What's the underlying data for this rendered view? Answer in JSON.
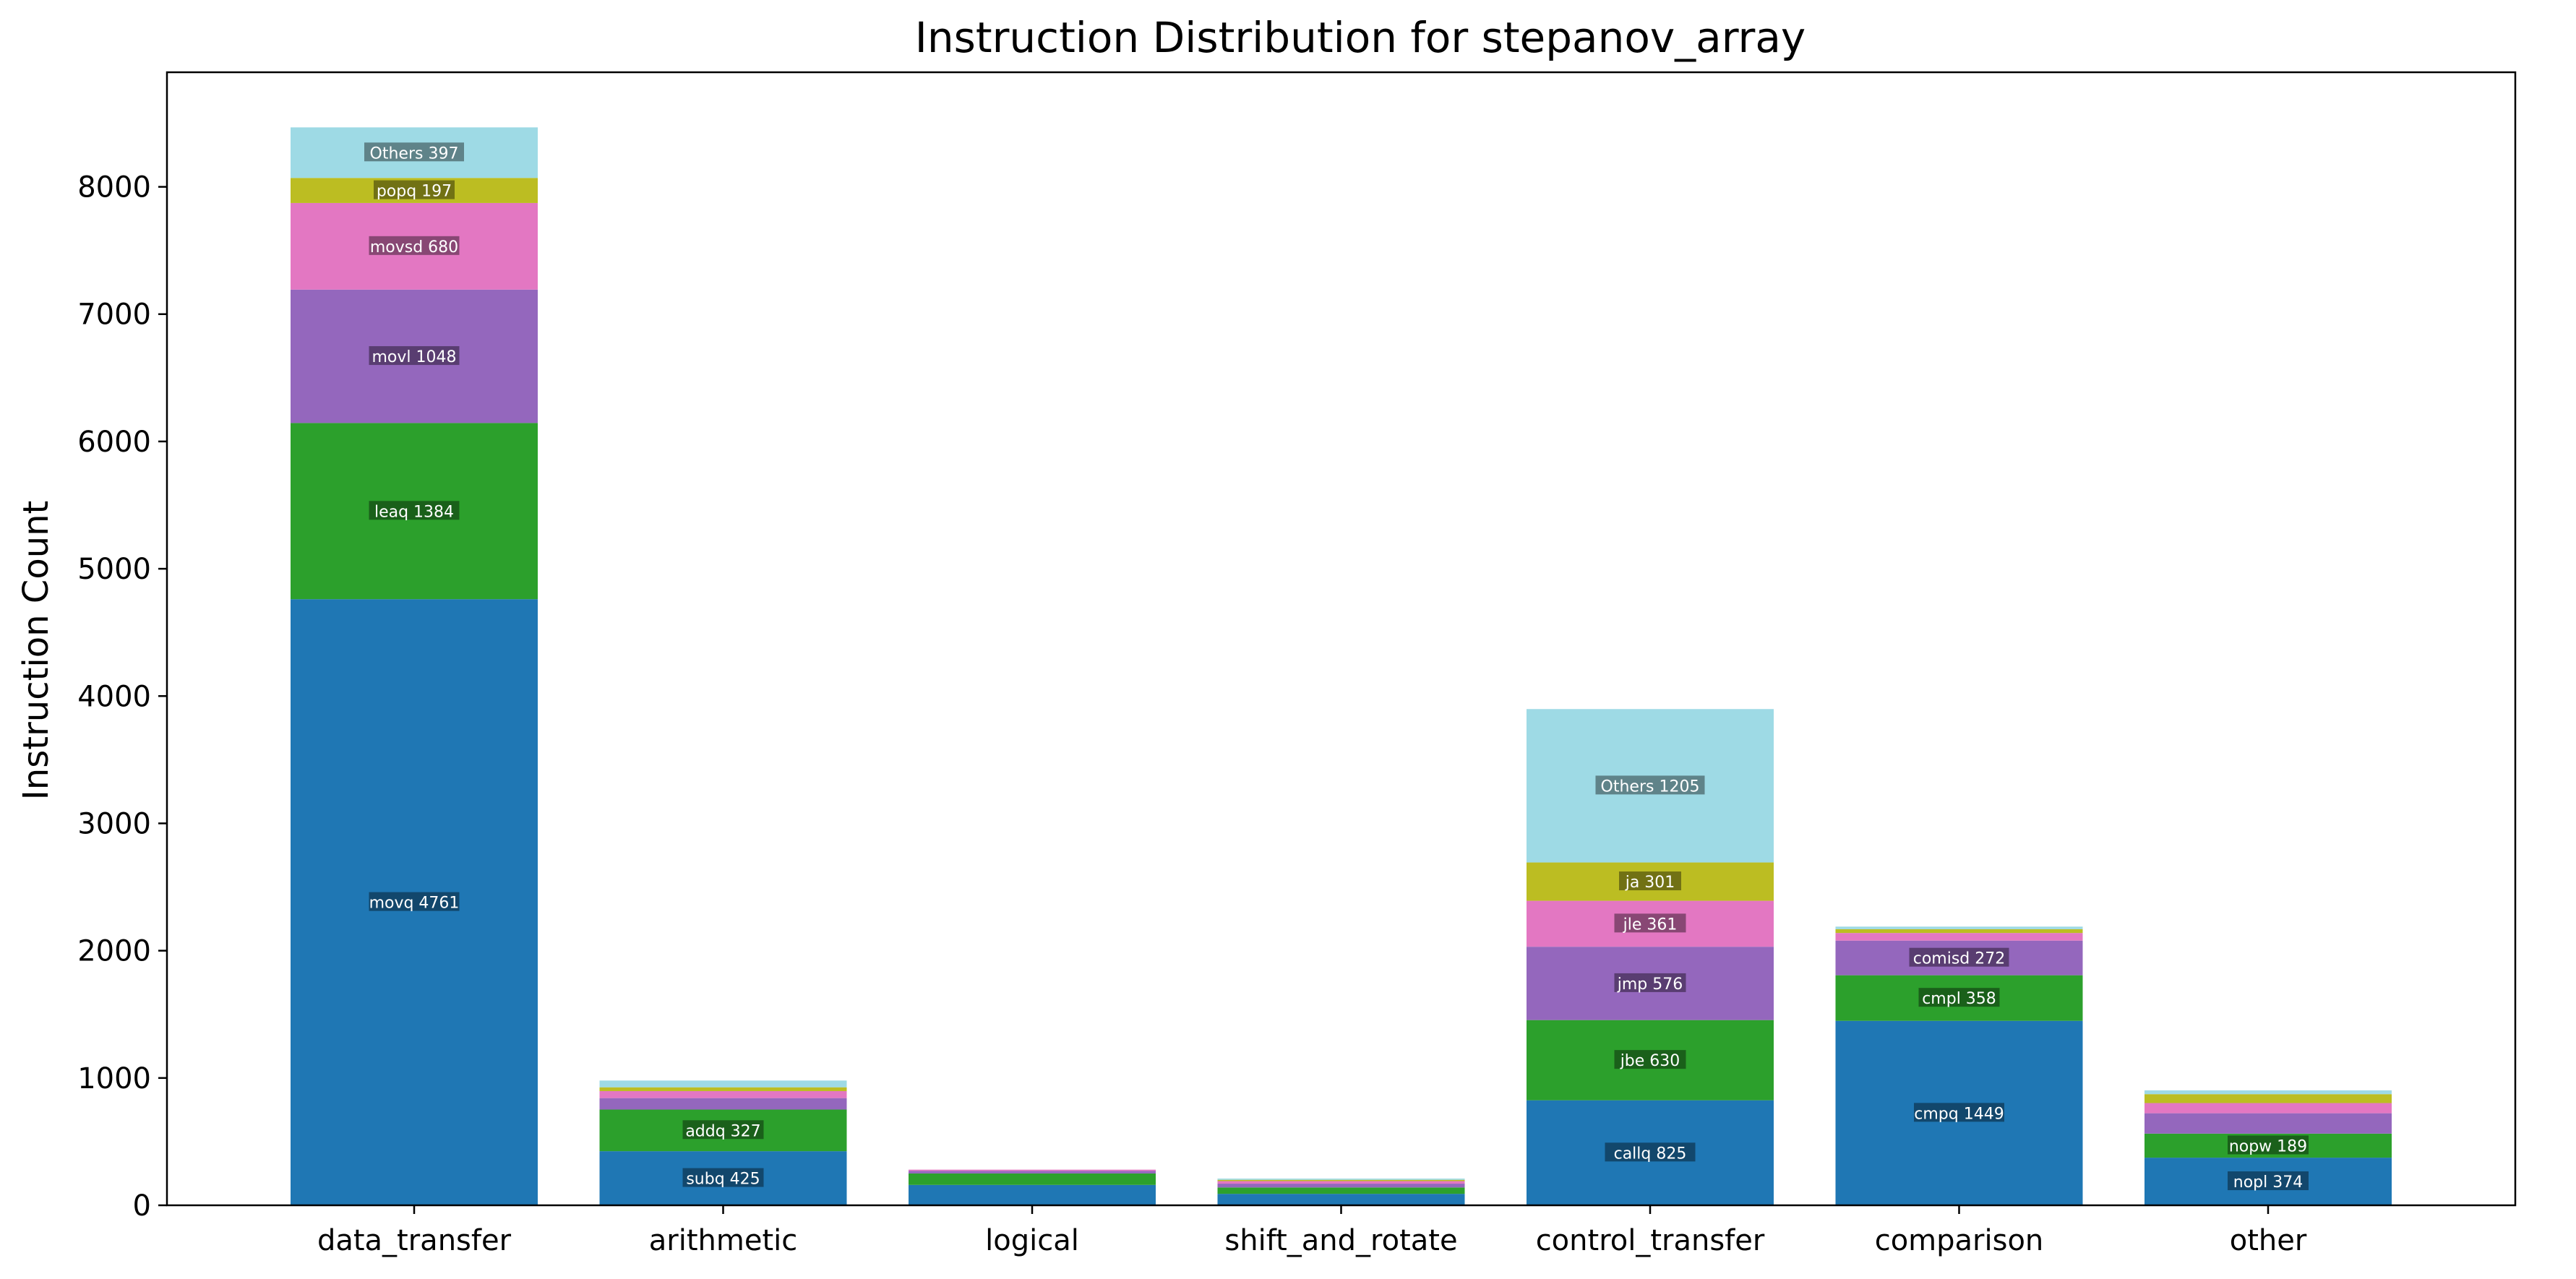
{
  "chart_data": {
    "type": "bar",
    "stacked": true,
    "title": "Instruction Distribution for stepanov_array",
    "xlabel": "",
    "ylabel": "Instruction Count",
    "ylim": [
      0,
      8900
    ],
    "yticks": [
      0,
      1000,
      2000,
      3000,
      4000,
      5000,
      6000,
      7000,
      8000
    ],
    "grid": false,
    "categories": [
      "data_transfer",
      "arithmetic",
      "logical",
      "shift_and_rotate",
      "control_transfer",
      "comparison",
      "other"
    ],
    "level_colors": [
      "#1f77b4",
      "#2ca02c",
      "#9467bd",
      "#e377c2",
      "#bcbd22",
      "#9edae5"
    ],
    "stacks": [
      {
        "category": "data_transfer",
        "segments": [
          {
            "name": "movq",
            "value": 4761,
            "label": "movq 4761"
          },
          {
            "name": "leaq",
            "value": 1384,
            "label": "leaq 1384"
          },
          {
            "name": "movl",
            "value": 1048,
            "label": "movl 1048"
          },
          {
            "name": "movsd",
            "value": 680,
            "label": "movsd 680"
          },
          {
            "name": "popq",
            "value": 197,
            "label": "popq 197"
          },
          {
            "name": "Others",
            "value": 397,
            "label": "Others 397"
          }
        ]
      },
      {
        "category": "arithmetic",
        "segments": [
          {
            "value": 425,
            "label": "subq 425"
          },
          {
            "value": 327,
            "label": "addq 327"
          },
          {
            "value": 90,
            "label": ""
          },
          {
            "value": 55,
            "label": ""
          },
          {
            "value": 30,
            "label": ""
          },
          {
            "value": 53,
            "label": ""
          }
        ]
      },
      {
        "category": "logical",
        "segments": [
          {
            "value": 160,
            "label": ""
          },
          {
            "value": 90,
            "label": ""
          },
          {
            "value": 20,
            "label": ""
          },
          {
            "value": 10,
            "label": ""
          }
        ]
      },
      {
        "category": "shift_and_rotate",
        "segments": [
          {
            "value": 90,
            "label": ""
          },
          {
            "value": 50,
            "label": ""
          },
          {
            "value": 30,
            "label": ""
          },
          {
            "value": 20,
            "label": ""
          },
          {
            "value": 10,
            "label": ""
          },
          {
            "value": 10,
            "label": ""
          }
        ]
      },
      {
        "category": "control_transfer",
        "segments": [
          {
            "name": "callq",
            "value": 825,
            "label": "callq 825"
          },
          {
            "name": "jbe",
            "value": 630,
            "label": "jbe 630"
          },
          {
            "name": "jmp",
            "value": 576,
            "label": "jmp 576"
          },
          {
            "name": "jle",
            "value": 361,
            "label": "jle 361"
          },
          {
            "name": "ja",
            "value": 301,
            "label": "ja 301"
          },
          {
            "name": "Others",
            "value": 1205,
            "label": "Others 1205"
          }
        ]
      },
      {
        "category": "comparison",
        "segments": [
          {
            "name": "cmpq",
            "value": 1449,
            "label": "cmpq 1449"
          },
          {
            "name": "cmpl",
            "value": 358,
            "label": "cmpl 358"
          },
          {
            "name": "comisd",
            "value": 272,
            "label": "comisd 272"
          },
          {
            "value": 60,
            "label": ""
          },
          {
            "value": 30,
            "label": ""
          },
          {
            "value": 20,
            "label": ""
          }
        ]
      },
      {
        "category": "other",
        "segments": [
          {
            "name": "nopl",
            "value": 374,
            "label": "nopl 374"
          },
          {
            "name": "nopw",
            "value": 189,
            "label": "nopw 189"
          },
          {
            "value": 160,
            "label": ""
          },
          {
            "value": 80,
            "label": ""
          },
          {
            "value": 70,
            "label": ""
          },
          {
            "value": 30,
            "label": ""
          }
        ]
      }
    ]
  }
}
